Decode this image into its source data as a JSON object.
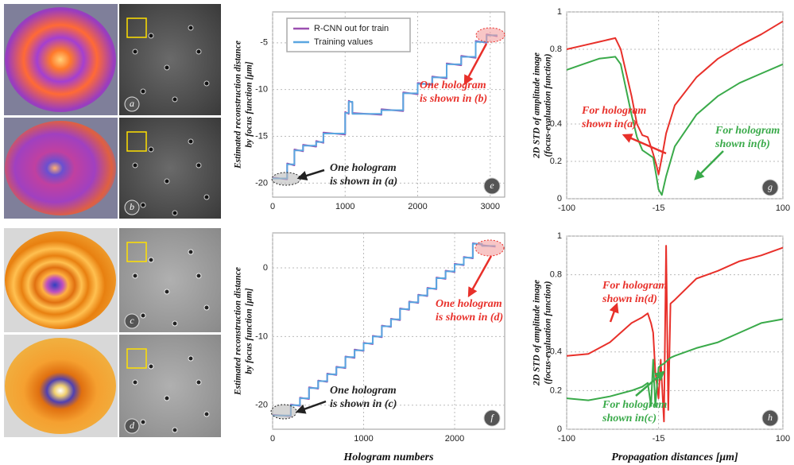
{
  "image_panels": [
    "a",
    "b",
    "c",
    "d"
  ],
  "chart_data": [
    {
      "type": "line",
      "panel_label": "e",
      "ylabel": [
        "Estimated reconstruction distance",
        "by focus function [μm]"
      ],
      "x": [
        0,
        200,
        200,
        300,
        300,
        420,
        420,
        600,
        600,
        700,
        700,
        1000,
        1000,
        1050,
        1050,
        1100,
        1100,
        1500,
        1500,
        1800,
        1800,
        2000,
        2000,
        2200,
        2200,
        2400,
        2400,
        2600,
        2600,
        2800,
        2800,
        2950,
        2950,
        3100
      ],
      "series": [
        {
          "name": "R-CNN out for train",
          "color": "#9b4fb0",
          "values": [
            -19.4,
            -19.6,
            -17.9,
            -18.1,
            -16.4,
            -16.6,
            -15.9,
            -16.1,
            -15.5,
            -15.7,
            -14.6,
            -14.8,
            -12.4,
            -12.6,
            -11.2,
            -11.4,
            -12.5,
            -12.7,
            -12.1,
            -12.3,
            -10.3,
            -10.5,
            -9.3,
            -9.5,
            -8.6,
            -8.8,
            -7.2,
            -7.4,
            -6.4,
            -6.6,
            -4.8,
            -5.0,
            -4.1,
            -4.3
          ]
        },
        {
          "name": "Training values",
          "color": "#5aa6e0",
          "values": [
            -19.5,
            -19.5,
            -18,
            -18,
            -16.5,
            -16.5,
            -16,
            -16,
            -15.6,
            -15.6,
            -14.7,
            -14.7,
            -12.5,
            -12.5,
            -11.3,
            -11.3,
            -12.6,
            -12.6,
            -12.2,
            -12.2,
            -10.4,
            -10.4,
            -9.4,
            -9.4,
            -8.7,
            -8.7,
            -7.3,
            -7.3,
            -6.5,
            -6.5,
            -4.9,
            -4.9,
            -4.2,
            -4.2
          ]
        }
      ],
      "legend": "upper left",
      "xlim": [
        0,
        3200
      ],
      "xticks": [
        0,
        1000,
        2000,
        3000
      ],
      "ylim": [
        -21.5,
        -1.7
      ],
      "yticks": [
        -20,
        -15,
        -10,
        -5
      ],
      "grid": true,
      "annotations": [
        {
          "lines": [
            "One hologram",
            "is shown in (a)"
          ],
          "color": "#222222"
        },
        {
          "lines": [
            "One hologram",
            "is shown in (b)"
          ],
          "color": "#e8302a"
        }
      ]
    },
    {
      "type": "line",
      "panel_label": "f",
      "ylabel": [
        "Estimated reconstruction distance",
        "by focus function [μm]"
      ],
      "xlabel": "Hologram numbers",
      "x": [
        0,
        200,
        200,
        300,
        300,
        400,
        400,
        500,
        500,
        600,
        600,
        700,
        700,
        800,
        800,
        900,
        900,
        1000,
        1000,
        1100,
        1100,
        1200,
        1200,
        1300,
        1300,
        1400,
        1400,
        1500,
        1500,
        1600,
        1600,
        1700,
        1700,
        1800,
        1800,
        1900,
        1900,
        2000,
        2000,
        2100,
        2100,
        2200,
        2200,
        2300,
        2300,
        2450
      ],
      "series": [
        {
          "color": "#9b4fb0",
          "values": [
            -21.4,
            -21.6,
            -19.9,
            -20.1,
            -18.9,
            -19.1,
            -17.4,
            -17.6,
            -16.4,
            -16.6,
            -15.4,
            -15.6,
            -14.4,
            -14.6,
            -12.9,
            -13.1,
            -11.9,
            -12.1,
            -10.9,
            -11.1,
            -9.9,
            -10.1,
            -8.4,
            -8.6,
            -7.4,
            -7.6,
            -5.9,
            -6.1,
            -4.9,
            -5.1,
            -3.9,
            -4.1,
            -2.9,
            -3.1,
            -1.4,
            -1.6,
            -0.4,
            -0.6,
            0.6,
            0.4,
            1.6,
            1.4,
            3.6,
            3.4,
            3.3,
            3.1
          ]
        },
        {
          "color": "#5aa6e0",
          "values": [
            -21.5,
            -21.5,
            -20,
            -20,
            -19,
            -19,
            -17.5,
            -17.5,
            -16.5,
            -16.5,
            -15.5,
            -15.5,
            -14.5,
            -14.5,
            -13,
            -13,
            -12,
            -12,
            -11,
            -11,
            -10,
            -10,
            -8.5,
            -8.5,
            -7.5,
            -7.5,
            -6,
            -6,
            -5,
            -5,
            -4,
            -4,
            -3,
            -3,
            -1.5,
            -1.5,
            -0.5,
            -0.5,
            0.5,
            0.5,
            1.5,
            1.5,
            3.5,
            3.5,
            3.2,
            3.2
          ]
        }
      ],
      "xlim": [
        0,
        2550
      ],
      "xticks": [
        0,
        1000,
        2000
      ],
      "ylim": [
        -23.5,
        5.1
      ],
      "yticks": [
        -20,
        -10,
        0
      ],
      "grid": true,
      "annotations": [
        {
          "lines": [
            "One hologram",
            "is shown in (c)"
          ],
          "color": "#222222"
        },
        {
          "lines": [
            "One hologram",
            "is shown in (d)"
          ],
          "color": "#e8302a"
        }
      ]
    },
    {
      "type": "line",
      "panel_label": "g",
      "ylabel": [
        "2D STD of amplitude image",
        "(focus-evaluation function)"
      ],
      "x": [
        -100,
        -85,
        -70,
        -55,
        -50,
        -40,
        -35,
        -30,
        -25,
        -20,
        -17,
        -15,
        -12,
        -8,
        0,
        20,
        40,
        60,
        80,
        100
      ],
      "series": [
        {
          "color": "#e8302a",
          "values": [
            0.8,
            0.82,
            0.84,
            0.86,
            0.8,
            0.55,
            0.4,
            0.34,
            0.33,
            0.24,
            0.18,
            0.13,
            0.22,
            0.35,
            0.5,
            0.65,
            0.75,
            0.82,
            0.88,
            0.95
          ]
        },
        {
          "color": "#3aaa4a",
          "values": [
            0.69,
            0.72,
            0.75,
            0.76,
            0.72,
            0.45,
            0.33,
            0.26,
            0.24,
            0.22,
            0.12,
            0.05,
            0.02,
            0.12,
            0.28,
            0.45,
            0.55,
            0.62,
            0.67,
            0.72
          ]
        }
      ],
      "xlim": [
        -100,
        100
      ],
      "xticks": [
        -100,
        -15,
        100
      ],
      "ylim": [
        0,
        1
      ],
      "yticks": [
        0,
        0.2,
        0.4,
        0.8,
        1
      ],
      "grid": true,
      "annotations": [
        {
          "lines": [
            "For hologram",
            "shown in(a)"
          ],
          "color": "#e8302a"
        },
        {
          "lines": [
            "For hologram",
            "shown in(b)"
          ],
          "color": "#3aaa4a"
        }
      ]
    },
    {
      "type": "line",
      "panel_label": "h",
      "ylabel": [
        "2D STD of amplitude image",
        "(focus-evaluation function)"
      ],
      "xlabel": "Propagation distances [μm]",
      "x": [
        -100,
        -80,
        -60,
        -40,
        -30,
        -25,
        -22,
        -20,
        -18,
        -15,
        -13,
        -10,
        -8,
        -6,
        -4,
        0,
        20,
        40,
        60,
        80,
        100
      ],
      "series": [
        {
          "color": "#e8302a",
          "values": [
            0.38,
            0.39,
            0.45,
            0.55,
            0.58,
            0.6,
            0.55,
            0.5,
            0.3,
            0.16,
            0.36,
            0.04,
            0.95,
            0.1,
            0.65,
            0.67,
            0.78,
            0.82,
            0.87,
            0.9,
            0.94
          ]
        },
        {
          "color": "#3aaa4a",
          "values": [
            0.16,
            0.15,
            0.17,
            0.2,
            0.22,
            0.24,
            0.12,
            0.36,
            0.12,
            0.32,
            0.33,
            0.34,
            0.35,
            0.36,
            0.37,
            0.38,
            0.42,
            0.45,
            0.5,
            0.55,
            0.57
          ]
        }
      ],
      "xlim": [
        -100,
        100
      ],
      "xticks": [
        -100,
        -15,
        100
      ],
      "ylim": [
        0,
        1
      ],
      "yticks": [
        0,
        0.2,
        0.4,
        0.8,
        1
      ],
      "grid": true,
      "annotations": [
        {
          "lines": [
            "For hologram",
            "shown in(d)"
          ],
          "color": "#e8302a"
        },
        {
          "lines": [
            "For hologram",
            "shown in(c)"
          ],
          "color": "#3aaa4a"
        }
      ]
    }
  ]
}
